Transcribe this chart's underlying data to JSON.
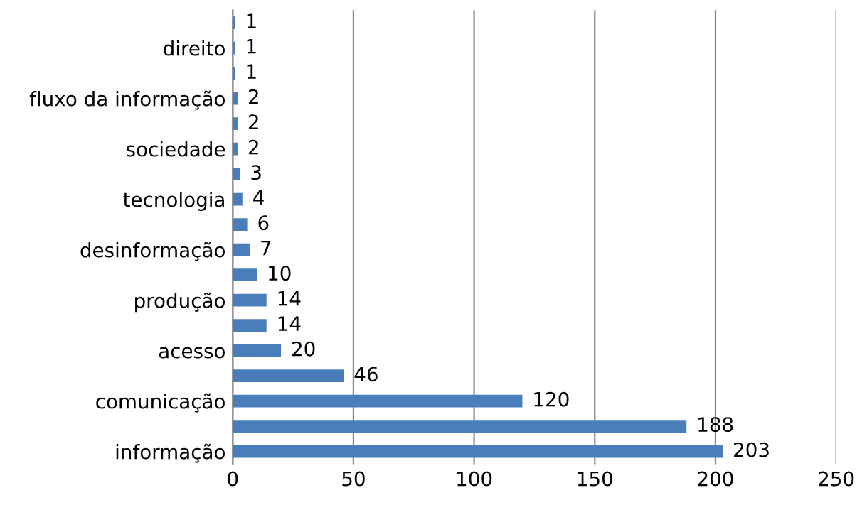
{
  "chart_data": {
    "type": "bar",
    "orientation": "horizontal",
    "categories": [
      null,
      "direito",
      null,
      "fluxo da informação",
      null,
      "sociedade",
      null,
      "tecnologia",
      null,
      "desinformação",
      null,
      "produção",
      null,
      "acesso",
      null,
      "comunicação",
      null,
      "informação"
    ],
    "values": [
      1,
      1,
      1,
      2,
      2,
      2,
      3,
      4,
      6,
      7,
      10,
      14,
      14,
      20,
      46,
      120,
      188,
      203
    ],
    "color": "#4a7ebb",
    "xlim": [
      0,
      250
    ],
    "xticks": [
      0,
      50,
      100,
      150,
      200,
      250
    ],
    "grid": "x",
    "data_labels": true
  }
}
